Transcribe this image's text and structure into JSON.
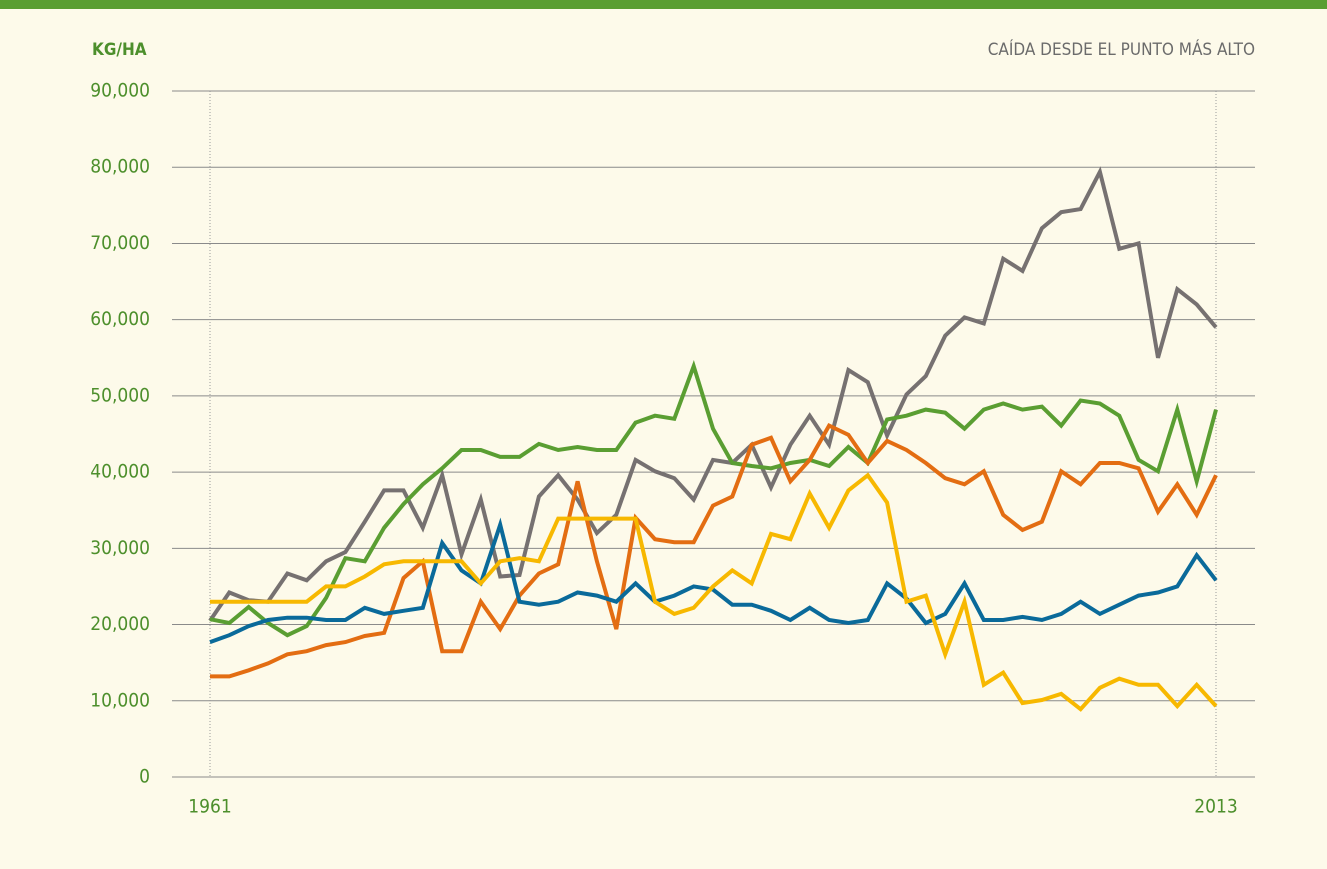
{
  "chart_data": {
    "type": "line",
    "ylabel": "KG/HA",
    "annotation": "CAÍDA DESDE EL PUNTO MÁS ALTO",
    "x": [
      1961,
      1962,
      1963,
      1964,
      1965,
      1966,
      1967,
      1968,
      1969,
      1970,
      1971,
      1972,
      1973,
      1974,
      1975,
      1976,
      1977,
      1978,
      1979,
      1980,
      1981,
      1982,
      1983,
      1984,
      1985,
      1986,
      1987,
      1988,
      1989,
      1990,
      1991,
      1992,
      1993,
      1994,
      1995,
      1996,
      1997,
      1998,
      1999,
      2000,
      2001,
      2002,
      2003,
      2004,
      2005,
      2006,
      2007,
      2008,
      2009,
      2010,
      2011,
      2012,
      2013
    ],
    "xlim": [
      1961,
      2013
    ],
    "xticks": [
      1961,
      2013
    ],
    "ylim": [
      0,
      90000
    ],
    "yticks": [
      0,
      {
        "value": 10000,
        "label": "10,000"
      },
      {
        "value": 20000,
        "label": "20,000"
      },
      {
        "value": 30000,
        "label": "30,000"
      },
      {
        "value": 40000,
        "label": "40,000"
      },
      {
        "value": 50000,
        "label": "50,000"
      },
      {
        "value": 60000,
        "label": "60,000"
      },
      {
        "value": 70000,
        "label": "70,000"
      },
      {
        "value": 80000,
        "label": "80,000"
      },
      {
        "value": 90000,
        "label": "90,000"
      }
    ],
    "grid": true,
    "series": [
      {
        "color": "#767171",
        "values": [
          20500,
          24200,
          23200,
          23000,
          26700,
          25800,
          28300,
          29500,
          33500,
          37600,
          37600,
          32700,
          39600,
          29200,
          36400,
          26300,
          26500,
          36800,
          39600,
          36400,
          32000,
          34400,
          41600,
          40100,
          39200,
          36400,
          41600,
          41200,
          43600,
          38000,
          43600,
          47400,
          43600,
          53400,
          51800,
          44800,
          50200,
          52600,
          57900,
          60300,
          59500,
          68000,
          66400,
          72000,
          74100,
          74500,
          79400,
          69300,
          70000,
          55000,
          64000,
          62000,
          59000
        ]
      },
      {
        "color": "#5a9e32",
        "values": [
          20700,
          20200,
          22300,
          20200,
          18600,
          19800,
          23500,
          28700,
          28300,
          32700,
          35800,
          38400,
          40500,
          42900,
          42900,
          42000,
          42000,
          43700,
          42900,
          43300,
          42900,
          42900,
          46500,
          47400,
          47000,
          53900,
          45700,
          41200,
          40800,
          40500,
          41200,
          41600,
          40800,
          43300,
          41200,
          46900,
          47400,
          48200,
          47800,
          45700,
          48200,
          49000,
          48200,
          48600,
          46100,
          49400,
          49000,
          47400,
          41600,
          40100,
          48200,
          38800,
          48200
        ]
      },
      {
        "color": "#e36d12",
        "values": [
          13200,
          13200,
          14000,
          14900,
          16100,
          16500,
          17300,
          17700,
          18500,
          18900,
          26100,
          28300,
          16500,
          16500,
          23000,
          19400,
          23800,
          26700,
          27900,
          38800,
          28300,
          19400,
          34000,
          31200,
          30800,
          30800,
          35600,
          36800,
          43600,
          44500,
          38800,
          41600,
          46100,
          44900,
          41200,
          44100,
          42900,
          41200,
          39200,
          38400,
          40100,
          34400,
          32400,
          33500,
          40100,
          38400,
          41200,
          41200,
          40500,
          34800,
          38400,
          34400,
          39600
        ]
      },
      {
        "color": "#0a6a9a",
        "values": [
          17700,
          18600,
          19800,
          20600,
          20900,
          20900,
          20600,
          20600,
          22200,
          21400,
          21800,
          22200,
          30700,
          27100,
          25400,
          33100,
          23000,
          22600,
          23000,
          24200,
          23800,
          23000,
          25400,
          23000,
          23800,
          25000,
          24600,
          22600,
          22600,
          21800,
          20600,
          22200,
          20600,
          20200,
          20600,
          25400,
          23400,
          20200,
          21400,
          25400,
          20600,
          20600,
          21000,
          20600,
          21400,
          23000,
          21400,
          22600,
          23800,
          24200,
          25000,
          29100,
          25800
        ]
      },
      {
        "color": "#f7b800",
        "values": [
          23000,
          23000,
          23000,
          23000,
          23000,
          23000,
          25000,
          25000,
          26300,
          27900,
          28300,
          28300,
          28300,
          28300,
          25400,
          28300,
          28700,
          28300,
          33900,
          33900,
          33900,
          33900,
          33900,
          23000,
          21400,
          22200,
          25000,
          27100,
          25400,
          31900,
          31200,
          37200,
          32700,
          37600,
          39600,
          36000,
          23000,
          23800,
          16100,
          23000,
          12100,
          13700,
          9700,
          10100,
          10900,
          8900,
          11700,
          12900,
          12100,
          12100,
          9300,
          12100,
          9300
        ]
      }
    ]
  }
}
